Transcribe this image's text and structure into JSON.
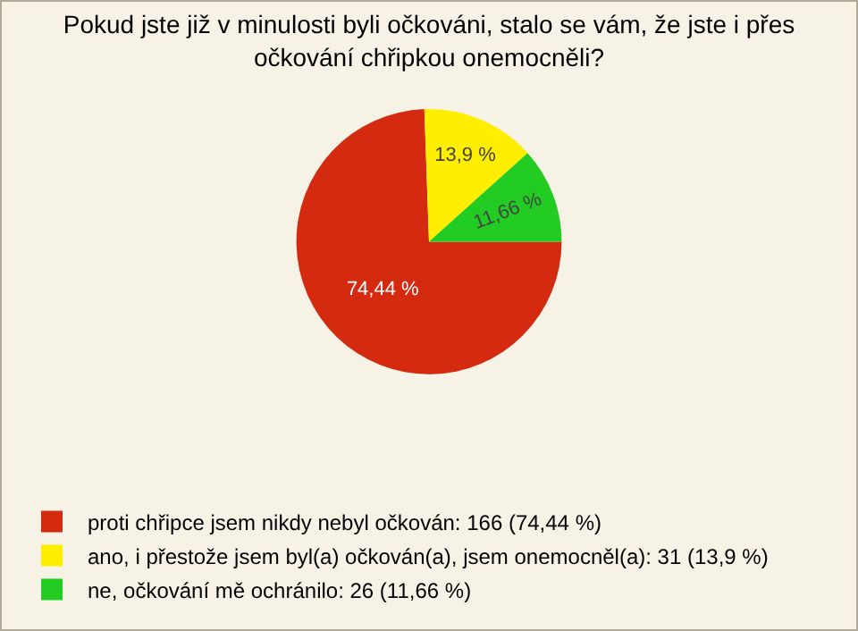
{
  "chart_data": {
    "type": "pie",
    "title": "Pokud jste již v minulosti byli očkováni, stalo se vám, že jste i přes očkování chřipkou onemocněli?",
    "categories": [
      "proti chřipce jsem nikdy nebyl očkován: 166 (74,44 %)",
      "ano, i přestože jsem byl(a) očkován(a), jsem onemocněl(a): 31 (13,9 %)",
      "ne, očkování mě ochránilo: 26 (11,66 %)"
    ],
    "values": [
      74.44,
      13.9,
      11.66
    ],
    "colors": [
      "#d42a10",
      "#ffee00",
      "#22cc22"
    ],
    "value_labels": [
      "74,44 %",
      "13,9 %",
      "11,66 %"
    ],
    "legend": "bottom left"
  }
}
